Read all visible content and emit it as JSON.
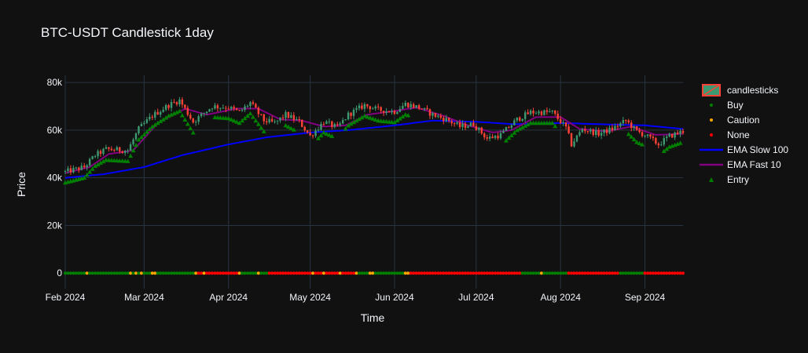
{
  "chart_data": {
    "type": "candlestick",
    "title": "BTC-USDT Candlestick 1day",
    "xlabel": "Time",
    "ylabel": "Price",
    "x_range": [
      "2024-02-01",
      "2024-09-15"
    ],
    "ylim": [
      -6500,
      83000
    ],
    "y_ticks": [
      {
        "value": 0,
        "label": "0"
      },
      {
        "value": 20000,
        "label": "20k"
      },
      {
        "value": 40000,
        "label": "40k"
      },
      {
        "value": 60000,
        "label": "60k"
      },
      {
        "value": 80000,
        "label": "80k"
      }
    ],
    "x_ticks": [
      {
        "date": "2024-02-01",
        "line1": "Feb 2024",
        "line2": ""
      },
      {
        "date": "2024-03-01",
        "line1": "Mar 2024",
        "line2": ""
      },
      {
        "date": "2024-04-01",
        "line1": "Apr 2024",
        "line2": ""
      },
      {
        "date": "2024-05-01",
        "line1": "May 2024",
        "line2": ""
      },
      {
        "date": "2024-06-01",
        "line1": "Jun 2024",
        "line2": ""
      },
      {
        "date": "2024-07-01",
        "line1": "Jul 2024",
        "line2": ""
      },
      {
        "date": "2024-08-01",
        "line1": "Aug 2024",
        "line2": ""
      },
      {
        "date": "2024-09-01",
        "line1": "Sep 2024",
        "line2": ""
      }
    ],
    "grid": true,
    "legend_position": "right",
    "colors": {
      "increasing": "#3d9970",
      "decreasing": "#ff4136",
      "buy": "#008000",
      "caution": "#ffa500",
      "none": "#ff0000",
      "ema_slow": "#0000ff",
      "ema_fast": "#800080",
      "entry": "#008000"
    },
    "legend": [
      "candlesticks",
      "Buy",
      "Caution",
      "None",
      "EMA Slow 100",
      "EMA Fast 10",
      "Entry"
    ],
    "close_anchors": [
      [
        "2024-02-01",
        42500
      ],
      [
        "2024-02-08",
        44500
      ],
      [
        "2024-02-12",
        49500
      ],
      [
        "2024-02-16",
        52000
      ],
      [
        "2024-02-24",
        51500
      ],
      [
        "2024-02-28",
        60500
      ],
      [
        "2024-03-04",
        66000
      ],
      [
        "2024-03-10",
        70500
      ],
      [
        "2024-03-14",
        72500
      ],
      [
        "2024-03-19",
        63500
      ],
      [
        "2024-03-26",
        70000
      ],
      [
        "2024-04-01",
        69500
      ],
      [
        "2024-04-05",
        67500
      ],
      [
        "2024-04-09",
        71500
      ],
      [
        "2024-04-14",
        64000
      ],
      [
        "2024-04-18",
        63000
      ],
      [
        "2024-04-22",
        66500
      ],
      [
        "2024-04-27",
        63500
      ],
      [
        "2024-05-01",
        57500
      ],
      [
        "2024-05-06",
        63500
      ],
      [
        "2024-05-11",
        61000
      ],
      [
        "2024-05-15",
        66500
      ],
      [
        "2024-05-21",
        70500
      ],
      [
        "2024-05-26",
        68500
      ],
      [
        "2024-06-01",
        67800
      ],
      [
        "2024-06-05",
        71000
      ],
      [
        "2024-06-10",
        69500
      ],
      [
        "2024-06-15",
        66500
      ],
      [
        "2024-06-20",
        64500
      ],
      [
        "2024-06-25",
        61500
      ],
      [
        "2024-06-30",
        62500
      ],
      [
        "2024-07-05",
        56500
      ],
      [
        "2024-07-10",
        58000
      ],
      [
        "2024-07-16",
        64500
      ],
      [
        "2024-07-21",
        67500
      ],
      [
        "2024-07-29",
        67500
      ],
      [
        "2024-08-03",
        61000
      ],
      [
        "2024-08-05",
        54000
      ],
      [
        "2024-08-09",
        60500
      ],
      [
        "2024-08-15",
        58500
      ],
      [
        "2024-08-20",
        60500
      ],
      [
        "2024-08-25",
        64000
      ],
      [
        "2024-08-29",
        59500
      ],
      [
        "2024-09-01",
        58000
      ],
      [
        "2024-09-06",
        54000
      ],
      [
        "2024-09-10",
        57500
      ],
      [
        "2024-09-15",
        59500
      ]
    ],
    "ema_fast_anchors": [
      [
        "2024-02-01",
        42000
      ],
      [
        "2024-02-10",
        44500
      ],
      [
        "2024-02-17",
        50000
      ],
      [
        "2024-02-26",
        51500
      ],
      [
        "2024-03-06",
        63000
      ],
      [
        "2024-03-16",
        69000
      ],
      [
        "2024-03-24",
        66500
      ],
      [
        "2024-04-04",
        69000
      ],
      [
        "2024-04-12",
        69000
      ],
      [
        "2024-04-20",
        64500
      ],
      [
        "2024-04-28",
        64000
      ],
      [
        "2024-05-06",
        61500
      ],
      [
        "2024-05-14",
        62000
      ],
      [
        "2024-05-22",
        66500
      ],
      [
        "2024-06-01",
        68000
      ],
      [
        "2024-06-09",
        69500
      ],
      [
        "2024-06-19",
        66000
      ],
      [
        "2024-06-28",
        62000
      ],
      [
        "2024-07-07",
        59000
      ],
      [
        "2024-07-14",
        60000
      ],
      [
        "2024-07-23",
        65500
      ],
      [
        "2024-08-01",
        65500
      ],
      [
        "2024-08-08",
        60500
      ],
      [
        "2024-08-18",
        59500
      ],
      [
        "2024-08-27",
        61500
      ],
      [
        "2024-09-05",
        58000
      ],
      [
        "2024-09-15",
        58500
      ]
    ],
    "ema_slow_anchors": [
      [
        "2024-02-01",
        40000
      ],
      [
        "2024-02-15",
        41500
      ],
      [
        "2024-03-01",
        44500
      ],
      [
        "2024-03-15",
        49500
      ],
      [
        "2024-04-01",
        54000
      ],
      [
        "2024-04-15",
        57000
      ],
      [
        "2024-05-01",
        59000
      ],
      [
        "2024-05-15",
        60000
      ],
      [
        "2024-06-01",
        62000
      ],
      [
        "2024-06-15",
        64000
      ],
      [
        "2024-07-01",
        63500
      ],
      [
        "2024-07-15",
        62500
      ],
      [
        "2024-08-01",
        63000
      ],
      [
        "2024-08-15",
        62500
      ],
      [
        "2024-09-01",
        62000
      ],
      [
        "2024-09-15",
        60500
      ]
    ],
    "signal_status": [
      {
        "from": "2024-02-01",
        "to": "2024-03-20",
        "status": "Buy"
      },
      {
        "from": "2024-03-21",
        "to": "2024-04-04",
        "status": "None"
      },
      {
        "from": "2024-04-05",
        "to": "2024-04-15",
        "status": "Buy"
      },
      {
        "from": "2024-04-16",
        "to": "2024-05-18",
        "status": "None"
      },
      {
        "from": "2024-05-19",
        "to": "2024-06-05",
        "status": "Buy"
      },
      {
        "from": "2024-06-06",
        "to": "2024-07-17",
        "status": "None"
      },
      {
        "from": "2024-07-18",
        "to": "2024-08-03",
        "status": "Buy"
      },
      {
        "from": "2024-08-04",
        "to": "2024-08-22",
        "status": "None"
      },
      {
        "from": "2024-08-23",
        "to": "2024-08-31",
        "status": "Buy"
      },
      {
        "from": "2024-09-01",
        "to": "2024-09-15",
        "status": "None"
      }
    ],
    "caution_dates": [
      "2024-02-09",
      "2024-02-25",
      "2024-02-27",
      "2024-02-29",
      "2024-03-04",
      "2024-03-05",
      "2024-03-20",
      "2024-03-23",
      "2024-04-05",
      "2024-04-12",
      "2024-05-02",
      "2024-05-06",
      "2024-05-12",
      "2024-05-18",
      "2024-05-23",
      "2024-05-24",
      "2024-06-05",
      "2024-06-06",
      "2024-07-25"
    ],
    "entry_offset": 4500,
    "entry_ranges": [
      [
        "2024-02-01",
        "2024-03-19"
      ],
      [
        "2024-03-27",
        "2024-04-14"
      ],
      [
        "2024-04-22",
        "2024-04-25"
      ],
      [
        "2024-05-04",
        "2024-05-09"
      ],
      [
        "2024-05-14",
        "2024-06-06"
      ],
      [
        "2024-07-12",
        "2024-07-30"
      ],
      [
        "2024-08-26",
        "2024-08-31"
      ],
      [
        "2024-09-08",
        "2024-09-14"
      ]
    ]
  }
}
